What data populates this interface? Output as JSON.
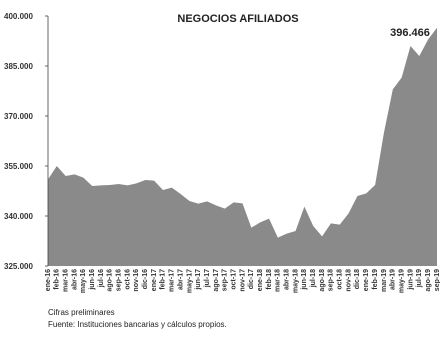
{
  "chart_data": {
    "type": "area",
    "title": "NEGOCIOS AFILIADOS",
    "highlight_label": "396.466",
    "xlabel": "",
    "ylabel": "",
    "ylim": [
      325000,
      400000
    ],
    "y_ticks": [
      "325.000",
      "340.000",
      "355.000",
      "370.000",
      "385.000",
      "400.000"
    ],
    "y_tick_values": [
      325000,
      340000,
      355000,
      370000,
      385000,
      400000
    ],
    "grid": false,
    "fill_color": "#8a8a8a",
    "categories": [
      "ene-16",
      "feb-16",
      "mar-16",
      "abr-16",
      "may-16",
      "jun-16",
      "jul-16",
      "ago-16",
      "sep-16",
      "oct-16",
      "nov-16",
      "dic-16",
      "ene-17",
      "feb-17",
      "mar-17",
      "abr-17",
      "may-17",
      "jun-17",
      "jul-17",
      "ago-17",
      "sep-17",
      "oct-17",
      "nov-17",
      "dic-17",
      "ene-18",
      "feb-18",
      "mar-18",
      "abr-18",
      "may-18",
      "jun-18",
      "jul-18",
      "ago-18",
      "sep-18",
      "oct-18",
      "nov-18",
      "dic-18",
      "ene-19",
      "feb-19",
      "mar-19",
      "abr-19",
      "may-19",
      "jun-19",
      "jul-19",
      "ago-19",
      "sep-19"
    ],
    "values": [
      351000,
      355000,
      352000,
      352500,
      351500,
      349000,
      349200,
      349300,
      349600,
      349200,
      349800,
      350800,
      350600,
      347800,
      348500,
      346600,
      344500,
      343700,
      344400,
      343200,
      342200,
      344100,
      343800,
      336500,
      338100,
      339200,
      333500,
      334700,
      335500,
      342800,
      337000,
      333900,
      337800,
      337400,
      340800,
      346000,
      346800,
      349300,
      365000,
      378000,
      381500,
      391000,
      388000,
      393000,
      396466
    ]
  },
  "notes": {
    "preliminary": "Cifras preliminares",
    "source": "Fuente: Instituciones bancarias y cálculos propios."
  }
}
